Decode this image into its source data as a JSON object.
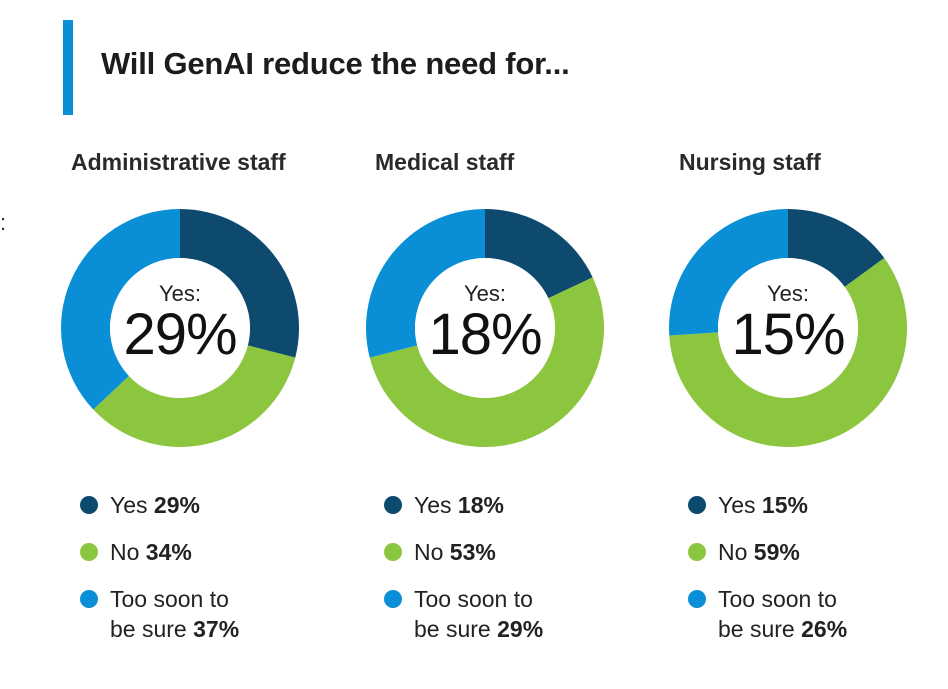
{
  "title": "Will GenAI reduce the need for...",
  "colors": {
    "accent": "#0a8fd6",
    "yes": "#0d4a6e",
    "no": "#8cc63f",
    "too_soon": "#0a8fd6"
  },
  "chart_data": [
    {
      "type": "pie",
      "title": "Administrative staff",
      "center_label": "Yes:",
      "center_value": "29%",
      "slices": [
        {
          "label": "Yes",
          "value": 29,
          "display": "29%",
          "color": "#0d4a6e"
        },
        {
          "label": "No",
          "value": 34,
          "display": "34%",
          "color": "#8cc63f"
        },
        {
          "label": "Too soon to be sure",
          "value": 37,
          "display": "37%",
          "color": "#0a8fd6",
          "label_line1": "Too soon to",
          "label_line2": "be sure"
        }
      ]
    },
    {
      "type": "pie",
      "title": "Medical staff",
      "center_label": "Yes:",
      "center_value": "18%",
      "slices": [
        {
          "label": "Yes",
          "value": 18,
          "display": "18%",
          "color": "#0d4a6e"
        },
        {
          "label": "No",
          "value": 53,
          "display": "53%",
          "color": "#8cc63f"
        },
        {
          "label": "Too soon to be sure",
          "value": 29,
          "display": "29%",
          "color": "#0a8fd6",
          "label_line1": "Too soon to",
          "label_line2": "be sure"
        }
      ]
    },
    {
      "type": "pie",
      "title": "Nursing staff",
      "center_label": "Yes:",
      "center_value": "15%",
      "slices": [
        {
          "label": "Yes",
          "value": 15,
          "display": "15%",
          "color": "#0d4a6e"
        },
        {
          "label": "No",
          "value": 59,
          "display": "59%",
          "color": "#8cc63f"
        },
        {
          "label": "Too soon to be sure",
          "value": 26,
          "display": "26%",
          "color": "#0a8fd6",
          "label_line1": "Too soon to",
          "label_line2": "be sure"
        }
      ]
    }
  ]
}
